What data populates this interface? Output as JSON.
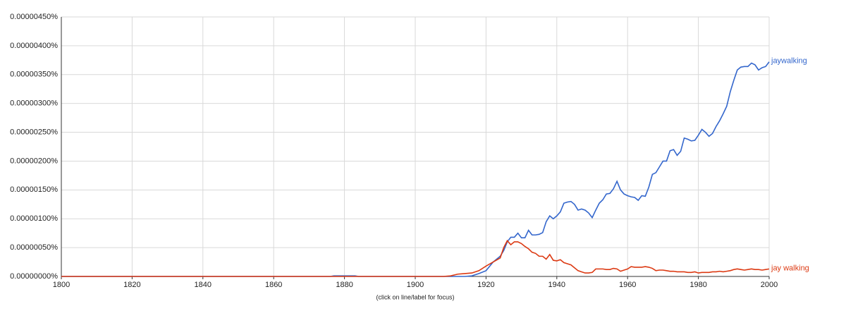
{
  "chart_data": {
    "type": "line",
    "caption": "(click on line/label for focus)",
    "x": [
      1800,
      1876,
      1877,
      1883,
      1884,
      1908,
      1910,
      1912,
      1914,
      1916,
      1918,
      1920,
      1922,
      1924,
      1925,
      1926,
      1927,
      1928,
      1929,
      1930,
      1931,
      1932,
      1933,
      1934,
      1935,
      1936,
      1937,
      1938,
      1939,
      1940,
      1941,
      1942,
      1943,
      1944,
      1945,
      1946,
      1947,
      1948,
      1949,
      1950,
      1951,
      1952,
      1953,
      1954,
      1955,
      1956,
      1957,
      1958,
      1959,
      1960,
      1961,
      1962,
      1963,
      1964,
      1965,
      1966,
      1967,
      1968,
      1969,
      1970,
      1971,
      1972,
      1973,
      1974,
      1975,
      1976,
      1977,
      1978,
      1979,
      1980,
      1981,
      1982,
      1983,
      1984,
      1985,
      1986,
      1987,
      1988,
      1989,
      1990,
      1991,
      1992,
      1993,
      1994,
      1995,
      1996,
      1997,
      1998,
      1999,
      2000
    ],
    "series": [
      {
        "name": "jaywalking",
        "color": "#3366cc",
        "values": [
          0,
          0,
          1e-08,
          1e-08,
          0,
          0,
          0,
          0,
          0,
          1e-08,
          5e-08,
          1e-07,
          2.5e-07,
          3.5e-07,
          4.5e-07,
          6e-07,
          6.8e-07,
          6.8e-07,
          7.5e-07,
          6.7e-07,
          6.7e-07,
          8e-07,
          7.2e-07,
          7.2e-07,
          7.3e-07,
          7.6e-07,
          9.5e-07,
          1.05e-06,
          1e-06,
          1.05e-06,
          1.12e-06,
          1.27e-06,
          1.29e-06,
          1.3e-06,
          1.25e-06,
          1.15e-06,
          1.17e-06,
          1.15e-06,
          1.1e-06,
          1.02e-06,
          1.15e-06,
          1.27e-06,
          1.33e-06,
          1.43e-06,
          1.44e-06,
          1.52e-06,
          1.65e-06,
          1.5e-06,
          1.43e-06,
          1.4e-06,
          1.38e-06,
          1.37e-06,
          1.32e-06,
          1.4e-06,
          1.39e-06,
          1.55e-06,
          1.77e-06,
          1.8e-06,
          1.9e-06,
          2e-06,
          2e-06,
          2.18e-06,
          2.2e-06,
          2.1e-06,
          2.17e-06,
          2.4e-06,
          2.38e-06,
          2.35e-06,
          2.36e-06,
          2.45e-06,
          2.55e-06,
          2.5e-06,
          2.43e-06,
          2.48e-06,
          2.6e-06,
          2.7e-06,
          2.82e-06,
          2.95e-06,
          3.2e-06,
          3.4e-06,
          3.58e-06,
          3.63e-06,
          3.64e-06,
          3.64e-06,
          3.7e-06,
          3.67e-06,
          3.58e-06,
          3.62e-06,
          3.64e-06,
          3.72e-06
        ]
      },
      {
        "name": "jay walking",
        "color": "#dc3912",
        "values": [
          0,
          0,
          0,
          0,
          0,
          0,
          1e-08,
          4e-08,
          5e-08,
          6e-08,
          1e-07,
          1.8e-07,
          2.5e-07,
          3.2e-07,
          5e-07,
          6.2e-07,
          5.5e-07,
          6e-07,
          6e-07,
          5.7e-07,
          5.2e-07,
          4.8e-07,
          4.2e-07,
          4e-07,
          3.5e-07,
          3.5e-07,
          3e-07,
          3.8e-07,
          2.8e-07,
          2.7e-07,
          2.9e-07,
          2.4e-07,
          2.2e-07,
          2e-07,
          1.5e-07,
          1e-07,
          8e-08,
          6e-08,
          6e-08,
          7e-08,
          1.3e-07,
          1.3e-07,
          1.3e-07,
          1.2e-07,
          1.2e-07,
          1.4e-07,
          1.3e-07,
          9e-08,
          1.1e-07,
          1.3e-07,
          1.7e-07,
          1.6e-07,
          1.6e-07,
          1.6e-07,
          1.7e-07,
          1.6e-07,
          1.4e-07,
          1e-07,
          1.1e-07,
          1.1e-07,
          1e-07,
          9e-08,
          9e-08,
          8e-08,
          8e-08,
          8e-08,
          7e-08,
          7e-08,
          8e-08,
          6e-08,
          7e-08,
          7e-08,
          7e-08,
          8e-08,
          8e-08,
          9e-08,
          8e-08,
          9e-08,
          1e-07,
          1.2e-07,
          1.3e-07,
          1.2e-07,
          1.1e-07,
          1.2e-07,
          1.3e-07,
          1.2e-07,
          1.2e-07,
          1.1e-07,
          1.2e-07,
          1.3e-07
        ]
      }
    ],
    "xlim": [
      1800,
      2000
    ],
    "xticks": [
      1800,
      1820,
      1840,
      1860,
      1880,
      1900,
      1920,
      1940,
      1960,
      1980,
      2000
    ],
    "ylim": [
      0,
      4.5e-06
    ],
    "yticks": [
      {
        "value": 0,
        "label": "0.00000000%"
      },
      {
        "value": 5e-07,
        "label": "0.00000050%"
      },
      {
        "value": 1e-06,
        "label": "0.00000100%"
      },
      {
        "value": 1.5e-06,
        "label": "0.00000150%"
      },
      {
        "value": 2e-06,
        "label": "0.00000200%"
      },
      {
        "value": 2.5e-06,
        "label": "0.00000250%"
      },
      {
        "value": 3e-06,
        "label": "0.00000300%"
      },
      {
        "value": 3.5e-06,
        "label": "0.00000350%"
      },
      {
        "value": 4e-06,
        "label": "0.00000400%"
      },
      {
        "value": 4.5e-06,
        "label": "0.00000450%"
      }
    ],
    "grid": true
  }
}
